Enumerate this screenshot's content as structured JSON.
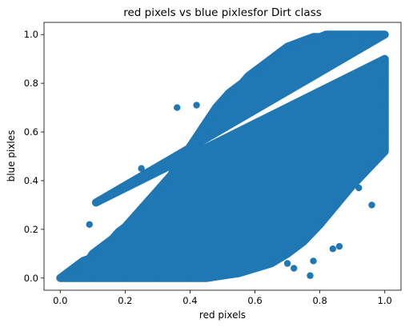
{
  "chart_data": {
    "type": "scatter",
    "title": "red pixels vs blue pixlesfor Dirt class",
    "xlabel": "red pixels",
    "ylabel": "blue pixles",
    "xlim": [
      -0.05,
      1.05
    ],
    "ylim": [
      -0.05,
      1.05
    ],
    "xticks": [
      "0.0",
      "0.2",
      "0.4",
      "0.6",
      "0.8",
      "1.0"
    ],
    "yticks": [
      "0.0",
      "0.2",
      "0.4",
      "0.6",
      "0.8",
      "1.0"
    ],
    "grid": false,
    "marker_color": "#1f77b4",
    "series": [
      {
        "values_description_note": "",
        "points": [
          [
            0.0,
            0.0
          ],
          [
            0.01,
            0.01
          ],
          [
            0.02,
            0.02
          ],
          [
            0.03,
            0.03
          ],
          [
            0.05,
            0.05
          ],
          [
            0.07,
            0.07
          ],
          [
            0.09,
            0.08
          ],
          [
            0.1,
            0.1
          ],
          [
            0.12,
            0.12
          ],
          [
            0.14,
            0.14
          ],
          [
            0.16,
            0.16
          ],
          [
            0.18,
            0.19
          ],
          [
            0.2,
            0.21
          ],
          [
            0.22,
            0.24
          ],
          [
            0.24,
            0.27
          ],
          [
            0.26,
            0.3
          ],
          [
            0.28,
            0.33
          ],
          [
            0.3,
            0.36
          ],
          [
            0.32,
            0.39
          ],
          [
            0.34,
            0.42
          ],
          [
            0.36,
            0.46
          ],
          [
            0.38,
            0.5
          ],
          [
            0.4,
            0.54
          ],
          [
            0.42,
            0.58
          ],
          [
            0.44,
            0.62
          ],
          [
            0.46,
            0.66
          ],
          [
            0.48,
            0.7
          ],
          [
            0.5,
            0.73
          ],
          [
            0.52,
            0.76
          ],
          [
            0.54,
            0.78
          ],
          [
            0.56,
            0.8
          ],
          [
            0.58,
            0.83
          ],
          [
            0.6,
            0.85
          ],
          [
            0.62,
            0.87
          ],
          [
            0.64,
            0.89
          ],
          [
            0.66,
            0.91
          ],
          [
            0.68,
            0.93
          ],
          [
            0.7,
            0.95
          ],
          [
            0.72,
            0.96
          ],
          [
            0.74,
            0.97
          ],
          [
            0.76,
            0.98
          ],
          [
            0.78,
            0.99
          ],
          [
            0.8,
            0.99
          ],
          [
            0.82,
            1.0
          ],
          [
            0.84,
            1.0
          ],
          [
            0.86,
            1.0
          ],
          [
            0.88,
            1.0
          ],
          [
            0.9,
            1.0
          ],
          [
            0.92,
            1.0
          ],
          [
            0.94,
            1.0
          ],
          [
            0.96,
            1.0
          ],
          [
            0.98,
            1.0
          ],
          [
            1.0,
            1.0
          ],
          [
            0.05,
            0.0
          ],
          [
            0.1,
            0.0
          ],
          [
            0.15,
            0.0
          ],
          [
            0.2,
            0.0
          ],
          [
            0.25,
            0.0
          ],
          [
            0.3,
            0.0
          ],
          [
            0.35,
            0.0
          ],
          [
            0.4,
            0.0
          ],
          [
            0.45,
            0.0
          ],
          [
            0.5,
            0.01
          ],
          [
            0.55,
            0.02
          ],
          [
            0.6,
            0.04
          ],
          [
            0.65,
            0.06
          ],
          [
            0.7,
            0.1
          ],
          [
            0.75,
            0.15
          ],
          [
            0.8,
            0.22
          ],
          [
            0.85,
            0.3
          ],
          [
            0.9,
            0.38
          ],
          [
            0.95,
            0.45
          ],
          [
            1.0,
            0.52
          ],
          [
            1.0,
            0.6
          ],
          [
            1.0,
            0.7
          ],
          [
            1.0,
            0.8
          ],
          [
            1.0,
            0.9
          ],
          [
            0.11,
            0.31
          ],
          [
            0.09,
            0.22
          ],
          [
            0.25,
            0.45
          ],
          [
            0.36,
            0.7
          ],
          [
            0.42,
            0.71
          ],
          [
            0.59,
            0.78
          ],
          [
            0.62,
            0.8
          ],
          [
            0.86,
            0.13
          ],
          [
            0.77,
            0.01
          ],
          [
            0.96,
            0.3
          ],
          [
            0.92,
            0.37
          ],
          [
            0.84,
            0.12
          ],
          [
            0.78,
            0.07
          ],
          [
            0.72,
            0.04
          ],
          [
            0.7,
            0.06
          ]
        ]
      }
    ]
  }
}
